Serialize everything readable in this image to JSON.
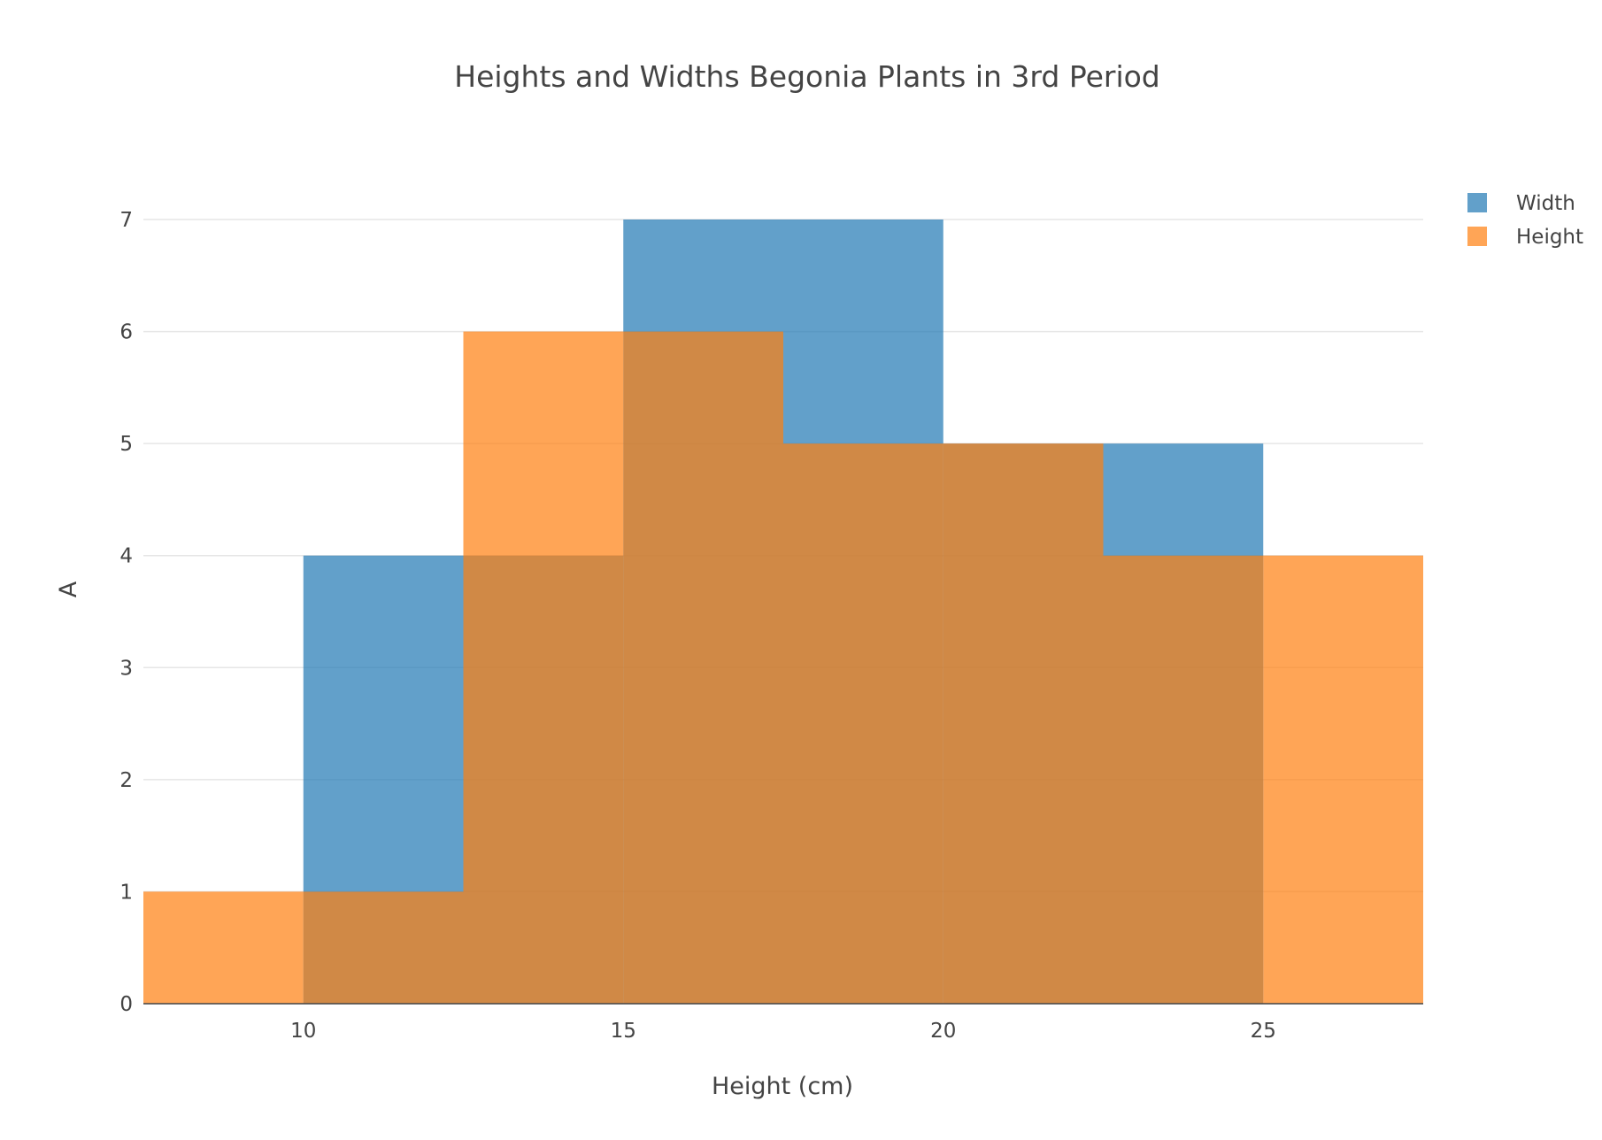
{
  "chart_data": {
    "type": "bar",
    "subtype": "overlaid-histogram",
    "title": "Heights and Widths Begonia Plants in 3rd Period",
    "xlabel": "Height (cm)",
    "ylabel": "A",
    "xlim": [
      7.5,
      27.5
    ],
    "ylim": [
      0,
      7
    ],
    "xticks": [
      10,
      15,
      20,
      25
    ],
    "yticks": [
      0,
      1,
      2,
      3,
      4,
      5,
      6,
      7
    ],
    "grid": true,
    "legend_position": "top-right",
    "bin_width": 2.5,
    "series": [
      {
        "name": "Width",
        "color": "#1f77b4",
        "opacity": 0.7,
        "bins": [
          {
            "start": 10,
            "end": 12.5,
            "count": 4
          },
          {
            "start": 12.5,
            "end": 15,
            "count": 4
          },
          {
            "start": 15,
            "end": 17.5,
            "count": 7
          },
          {
            "start": 17.5,
            "end": 20,
            "count": 7
          },
          {
            "start": 20,
            "end": 22.5,
            "count": 5
          },
          {
            "start": 22.5,
            "end": 25,
            "count": 5
          }
        ]
      },
      {
        "name": "Height",
        "color": "#ff7f0e",
        "opacity": 0.7,
        "bins": [
          {
            "start": 7.5,
            "end": 10,
            "count": 1
          },
          {
            "start": 10,
            "end": 12.5,
            "count": 1
          },
          {
            "start": 12.5,
            "end": 15,
            "count": 6
          },
          {
            "start": 15,
            "end": 17.5,
            "count": 6
          },
          {
            "start": 17.5,
            "end": 20,
            "count": 5
          },
          {
            "start": 20,
            "end": 22.5,
            "count": 5
          },
          {
            "start": 22.5,
            "end": 25,
            "count": 4
          },
          {
            "start": 25,
            "end": 27.5,
            "count": 4
          }
        ]
      }
    ]
  }
}
